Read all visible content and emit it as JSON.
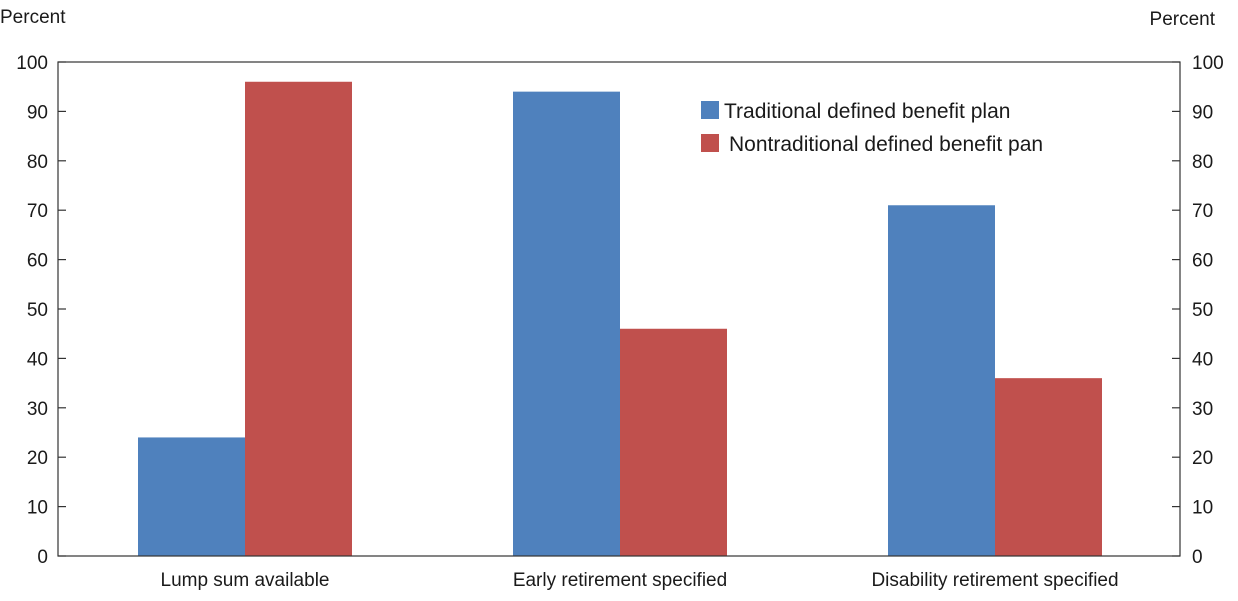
{
  "chart_data": {
    "type": "bar",
    "title": "",
    "xlabel": "",
    "ylabel": "Percent",
    "ylabel_right": "Percent",
    "ylim": [
      0,
      100
    ],
    "yticks": [
      0,
      10,
      20,
      30,
      40,
      50,
      60,
      70,
      80,
      90,
      100
    ],
    "grid": false,
    "legend_position": "top-right",
    "categories": [
      "Lump sum available",
      "Early retirement specified",
      "Disability retirement specified"
    ],
    "series": [
      {
        "name": "Traditional defined benefit plan",
        "color": "#4f81bd",
        "values": [
          24,
          94,
          71
        ]
      },
      {
        "name": "Nontraditional defined benefit pan",
        "color": "#c0504d",
        "values": [
          96,
          46,
          36
        ]
      }
    ]
  }
}
